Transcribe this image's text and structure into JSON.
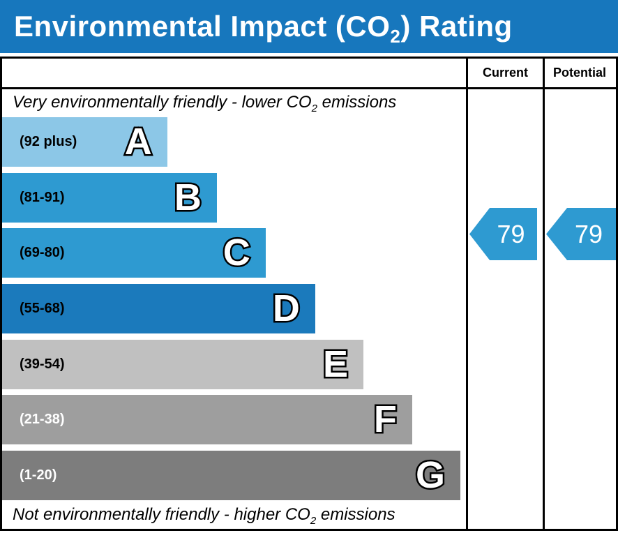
{
  "title": {
    "prefix": "Environmental Impact (CO",
    "sub": "2",
    "suffix": ") Rating"
  },
  "colors": {
    "header_bg": "#1777bd",
    "border": "#000000",
    "arrow_blue": "#2e9ad1"
  },
  "columns": {
    "current": "Current",
    "potential": "Potential"
  },
  "top_note": {
    "prefix": "Very environmentally friendly - lower CO",
    "sub": "2",
    "suffix": " emissions"
  },
  "bottom_note": {
    "prefix": "Not environmentally friendly - higher CO",
    "sub": "2",
    "suffix": " emissions"
  },
  "bands": [
    {
      "letter": "A",
      "range": "(92 plus)",
      "color": "#8cc7e7",
      "text_color": "#000000",
      "width_pct": 35.6
    },
    {
      "letter": "B",
      "range": "(81-91)",
      "color": "#2e9ad1",
      "text_color": "#000000",
      "width_pct": 46.3
    },
    {
      "letter": "C",
      "range": "(69-80)",
      "color": "#2e9ad1",
      "text_color": "#000000",
      "width_pct": 56.8
    },
    {
      "letter": "D",
      "range": "(55-68)",
      "color": "#1b7abc",
      "text_color": "#000000",
      "width_pct": 67.5
    },
    {
      "letter": "E",
      "range": "(39-54)",
      "color": "#c0c0c0",
      "text_color": "#000000",
      "width_pct": 77.9
    },
    {
      "letter": "F",
      "range": "(21-38)",
      "color": "#9e9e9e",
      "text_color": "#ffffff",
      "width_pct": 88.4
    },
    {
      "letter": "G",
      "range": "(1-20)",
      "color": "#7d7d7d",
      "text_color": "#ffffff",
      "width_pct": 98.8
    }
  ],
  "current": {
    "value": "79",
    "color": "#2e9ad1"
  },
  "potential": {
    "value": "79",
    "color": "#2e9ad1"
  },
  "chart_data": {
    "type": "bar",
    "title": "Environmental Impact (CO2) Rating",
    "categories": [
      "A",
      "B",
      "C",
      "D",
      "E",
      "F",
      "G"
    ],
    "band_ranges": [
      "92 plus",
      "81-91",
      "69-80",
      "55-68",
      "39-54",
      "21-38",
      "1-20"
    ],
    "band_bar_lengths_pct": [
      35.6,
      46.3,
      56.8,
      67.5,
      77.9,
      88.4,
      98.8
    ],
    "band_colors": [
      "#8cc7e7",
      "#2e9ad1",
      "#2e9ad1",
      "#1b7abc",
      "#c0c0c0",
      "#9e9e9e",
      "#7d7d7d"
    ],
    "series": [
      {
        "name": "Current",
        "values": [
          79
        ],
        "band": "C"
      },
      {
        "name": "Potential",
        "values": [
          79
        ],
        "band": "C"
      }
    ],
    "annotations": [
      "Very environmentally friendly - lower CO2 emissions",
      "Not environmentally friendly - higher CO2 emissions"
    ],
    "legend_position": "none",
    "grid": false
  }
}
